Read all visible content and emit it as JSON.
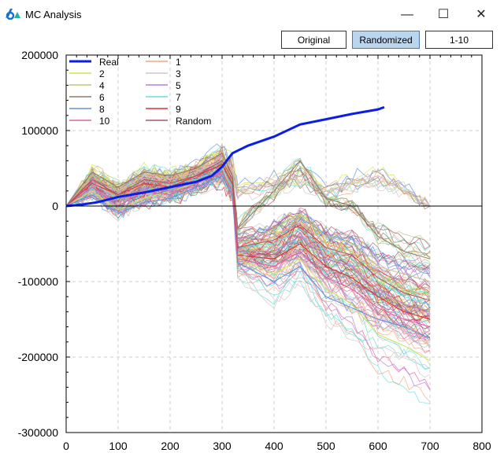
{
  "window": {
    "title": "MC Analysis",
    "minimize": "—",
    "maximize": "☐",
    "close": "✕",
    "icon": "app-logo-icon"
  },
  "toolbar": {
    "buttons": [
      {
        "label": "Original",
        "selected": false
      },
      {
        "label": "Randomized",
        "selected": true
      },
      {
        "label": "1-10",
        "selected": false
      }
    ]
  },
  "chart_data": {
    "type": "line",
    "xlim": [
      0,
      800
    ],
    "ylim": [
      -300000,
      200000
    ],
    "x_ticks": [
      "0",
      "100",
      "200",
      "300",
      "400",
      "500",
      "600",
      "700",
      "800"
    ],
    "y_ticks": [
      "200000",
      "100000",
      "0",
      "-100000",
      "-200000",
      "-300000"
    ],
    "grid": true,
    "legend_position": "top-left",
    "x": [
      0,
      50,
      100,
      150,
      200,
      250,
      300,
      320,
      330,
      400,
      450,
      500,
      550,
      600,
      650,
      700
    ],
    "series": [
      {
        "name": "Real",
        "color": "#0a1ee6",
        "x": [
          0,
          30,
          60,
          100,
          150,
          200,
          250,
          280,
          300,
          320,
          350,
          400,
          450,
          500,
          550,
          600,
          612
        ],
        "values": [
          0,
          2000,
          5000,
          12000,
          18000,
          25000,
          32000,
          40000,
          52000,
          70000,
          80000,
          92000,
          108000,
          115000,
          122000,
          128000,
          131000
        ]
      },
      {
        "name": "1",
        "color": "#f4a582",
        "values": [
          0,
          35000,
          10000,
          30000,
          25000,
          40000,
          55000,
          40000,
          -60000,
          -40000,
          -20000,
          -50000,
          -60000,
          -90000,
          -110000,
          -120000
        ]
      },
      {
        "name": "2",
        "color": "#c8e650",
        "values": [
          0,
          20000,
          -5000,
          10000,
          20000,
          30000,
          50000,
          20000,
          -70000,
          -90000,
          -70000,
          -110000,
          -130000,
          -170000,
          -185000,
          -205000
        ]
      },
      {
        "name": "3",
        "color": "#d8c0c0",
        "values": [
          0,
          30000,
          20000,
          40000,
          35000,
          45000,
          60000,
          50000,
          20000,
          30000,
          40000,
          20000,
          30000,
          40000,
          20000,
          0
        ]
      },
      {
        "name": "4",
        "color": "#b8c878",
        "values": [
          0,
          40000,
          20000,
          35000,
          30000,
          40000,
          60000,
          30000,
          -50000,
          -30000,
          -10000,
          -40000,
          -50000,
          -80000,
          -90000,
          -100000
        ]
      },
      {
        "name": "5",
        "color": "#b080d8",
        "values": [
          0,
          25000,
          5000,
          25000,
          20000,
          35000,
          45000,
          20000,
          -60000,
          -60000,
          -40000,
          -70000,
          -80000,
          -110000,
          -130000,
          -140000
        ]
      },
      {
        "name": "6",
        "color": "#907860",
        "values": [
          0,
          45000,
          25000,
          45000,
          40000,
          50000,
          70000,
          40000,
          -30000,
          20000,
          60000,
          10000,
          0,
          -40000,
          -60000,
          -70000
        ]
      },
      {
        "name": "7",
        "color": "#60e0e0",
        "values": [
          0,
          30000,
          10000,
          20000,
          30000,
          35000,
          50000,
          25000,
          -55000,
          -50000,
          -30000,
          -60000,
          -70000,
          -100000,
          -120000,
          -130000
        ]
      },
      {
        "name": "8",
        "color": "#6090e0",
        "values": [
          0,
          15000,
          -10000,
          5000,
          10000,
          25000,
          40000,
          15000,
          -75000,
          -100000,
          -80000,
          -120000,
          -135000,
          -150000,
          -160000,
          -175000
        ]
      },
      {
        "name": "9",
        "color": "#e03030",
        "values": [
          0,
          30000,
          15000,
          30000,
          25000,
          40000,
          55000,
          30000,
          -65000,
          -70000,
          -50000,
          -80000,
          -95000,
          -120000,
          -140000,
          -150000
        ]
      },
      {
        "name": "10",
        "color": "#e060a0",
        "values": [
          0,
          25000,
          0,
          20000,
          15000,
          30000,
          45000,
          20000,
          -70000,
          -80000,
          -60000,
          -95000,
          -110000,
          -135000,
          -150000,
          -160000
        ]
      },
      {
        "name": "Random",
        "color": "#b05070",
        "values": [
          0,
          35000,
          15000,
          35000,
          30000,
          40000,
          60000,
          35000,
          -55000,
          -45000,
          -25000,
          -55000,
          -65000,
          -95000,
          -115000,
          -125000
        ]
      }
    ]
  }
}
